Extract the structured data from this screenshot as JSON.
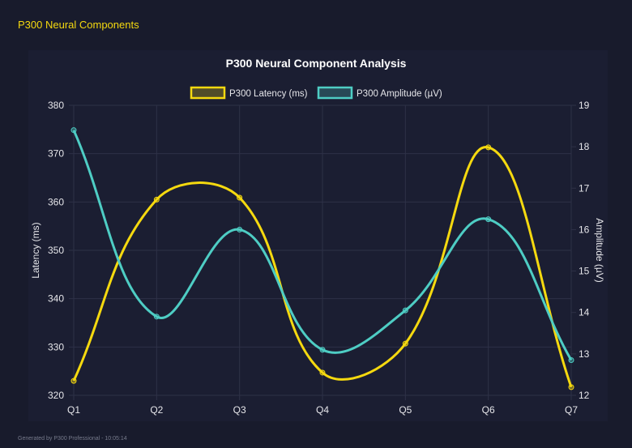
{
  "page_title": "P300 Neural Components",
  "footer": "Generated by P300 Professional - 10:05:14",
  "chart_data": {
    "type": "line",
    "title": "P300 Neural Component Analysis",
    "categories": [
      "Q1",
      "Q2",
      "Q3",
      "Q4",
      "Q5",
      "Q6",
      "Q7"
    ],
    "legend_position": "top",
    "grid": true,
    "series": [
      {
        "name": "P300 Latency (ms)",
        "axis": "left",
        "color": "#f5d90f",
        "values": [
          323.0,
          360.5,
          360.9,
          324.7,
          330.7,
          371.3,
          321.7
        ]
      },
      {
        "name": "P300 Amplitude (µV)",
        "axis": "right",
        "color": "#4ecdc4",
        "values": [
          18.4,
          13.9,
          16.0,
          13.1,
          14.05,
          16.25,
          12.85
        ]
      }
    ],
    "y_left": {
      "label": "Latency (ms)",
      "range": [
        320,
        380
      ],
      "ticks": [
        "320",
        "330",
        "340",
        "350",
        "360",
        "370",
        "380"
      ]
    },
    "y_right": {
      "label": "Amplitude (µV)",
      "range": [
        12,
        19
      ],
      "ticks": [
        "12",
        "13",
        "14",
        "15",
        "16",
        "17",
        "18",
        "19"
      ]
    }
  }
}
